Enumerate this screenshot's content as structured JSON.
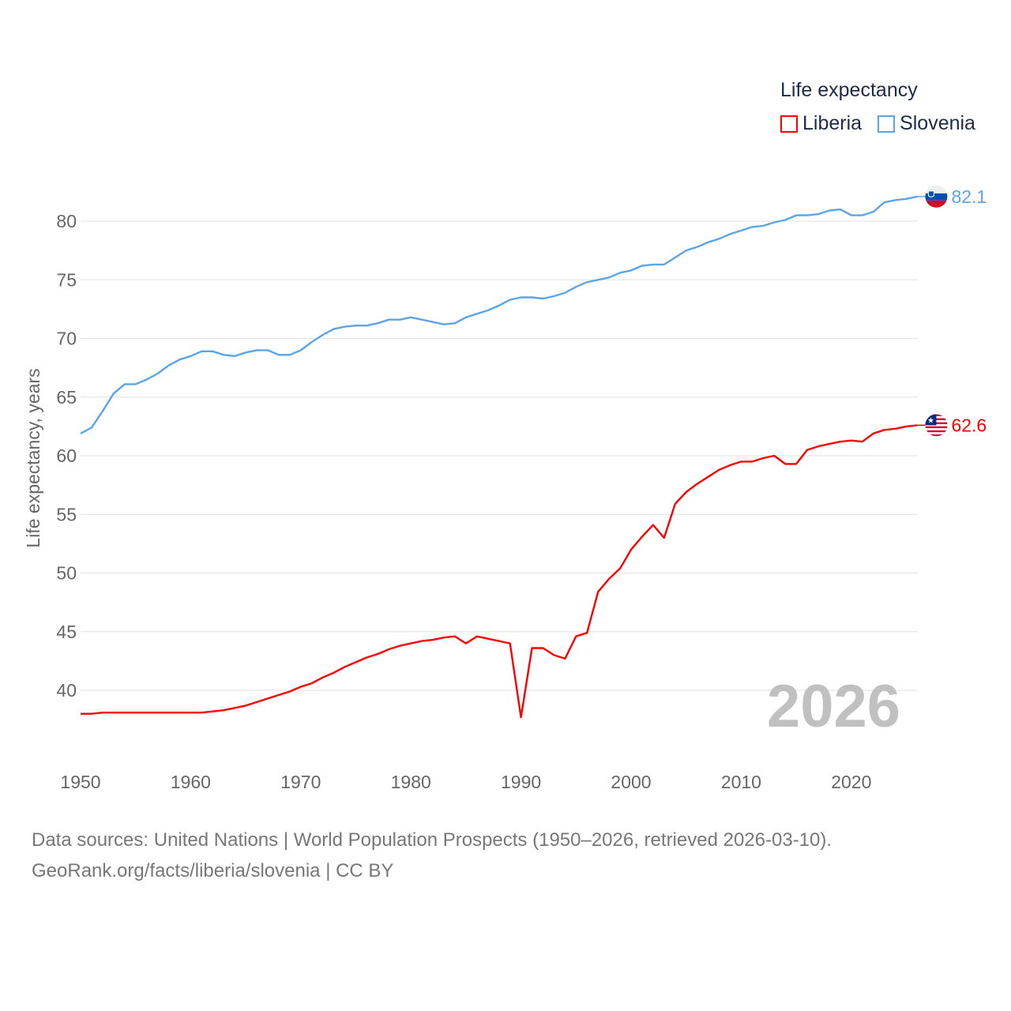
{
  "chart_data": {
    "type": "line",
    "title": "Life expectancy",
    "xlabel": "",
    "ylabel": "Life expectancy, years",
    "xlim": [
      1950,
      2026
    ],
    "ylim": [
      35.6,
      84
    ],
    "x_ticks": [
      "1950",
      "1960",
      "1970",
      "1980",
      "1990",
      "2000",
      "2010",
      "2020"
    ],
    "y_ticks": [
      "40",
      "45",
      "50",
      "55",
      "60",
      "65",
      "70",
      "75",
      "80"
    ],
    "grid": true,
    "legend_placement": "top-right",
    "year_watermark": "2026",
    "x": [
      1950,
      1951,
      1952,
      1953,
      1954,
      1955,
      1956,
      1957,
      1958,
      1959,
      1960,
      1961,
      1962,
      1963,
      1964,
      1965,
      1966,
      1967,
      1968,
      1969,
      1970,
      1971,
      1972,
      1973,
      1974,
      1975,
      1976,
      1977,
      1978,
      1979,
      1980,
      1981,
      1982,
      1983,
      1984,
      1985,
      1986,
      1987,
      1988,
      1989,
      1990,
      1991,
      1992,
      1993,
      1994,
      1995,
      1996,
      1997,
      1998,
      1999,
      2000,
      2001,
      2002,
      2003,
      2004,
      2005,
      2006,
      2007,
      2008,
      2009,
      2010,
      2011,
      2012,
      2013,
      2014,
      2015,
      2016,
      2017,
      2018,
      2019,
      2020,
      2021,
      2022,
      2023,
      2024,
      2025,
      2026
    ],
    "series": [
      {
        "name": "Liberia",
        "color": "#ff0000",
        "end_label": "62.6",
        "flag": "liberia-flag",
        "values": [
          38.0,
          38.0,
          38.1,
          38.1,
          38.1,
          38.1,
          38.1,
          38.1,
          38.1,
          38.1,
          38.1,
          38.1,
          38.2,
          38.3,
          38.5,
          38.7,
          39.0,
          39.3,
          39.6,
          39.9,
          40.3,
          40.6,
          41.1,
          41.5,
          42.0,
          42.4,
          42.8,
          43.1,
          43.5,
          43.8,
          44.0,
          44.2,
          44.3,
          44.5,
          44.6,
          44.0,
          44.6,
          44.4,
          44.2,
          44.0,
          37.7,
          43.6,
          43.6,
          43.0,
          42.7,
          44.6,
          44.9,
          48.4,
          49.5,
          50.4,
          52.0,
          53.1,
          54.1,
          53.0,
          55.9,
          56.9,
          57.6,
          58.2,
          58.8,
          59.2,
          59.5,
          59.5,
          59.8,
          60.0,
          59.3,
          59.3,
          60.5,
          60.8,
          61.0,
          61.2,
          61.3,
          61.2,
          61.9,
          62.2,
          62.3,
          62.5,
          62.6
        ]
      },
      {
        "name": "Slovenia",
        "color": "#5ba4ea",
        "end_label": "82.1",
        "flag": "slovenia-flag",
        "values": [
          61.9,
          62.4,
          63.8,
          65.3,
          66.1,
          66.1,
          66.5,
          67.0,
          67.7,
          68.2,
          68.5,
          68.9,
          68.9,
          68.6,
          68.5,
          68.8,
          69.0,
          69.0,
          68.6,
          68.6,
          69.0,
          69.7,
          70.3,
          70.8,
          71.0,
          71.1,
          71.1,
          71.3,
          71.6,
          71.6,
          71.8,
          71.6,
          71.4,
          71.2,
          71.3,
          71.8,
          72.1,
          72.4,
          72.8,
          73.3,
          73.5,
          73.5,
          73.4,
          73.6,
          73.9,
          74.4,
          74.8,
          75.0,
          75.2,
          75.6,
          75.8,
          76.2,
          76.3,
          76.3,
          76.9,
          77.5,
          77.8,
          78.2,
          78.5,
          78.9,
          79.2,
          79.5,
          79.6,
          79.9,
          80.1,
          80.5,
          80.5,
          80.6,
          80.9,
          81.0,
          80.5,
          80.5,
          80.8,
          81.6,
          81.8,
          81.9,
          82.1
        ]
      }
    ]
  },
  "footer": {
    "line1": "Data sources: United Nations | World Population Prospects (1950–2026, retrieved 2026-03-10).",
    "line2": "GeoRank.org/facts/liberia/slovenia | CC BY"
  }
}
